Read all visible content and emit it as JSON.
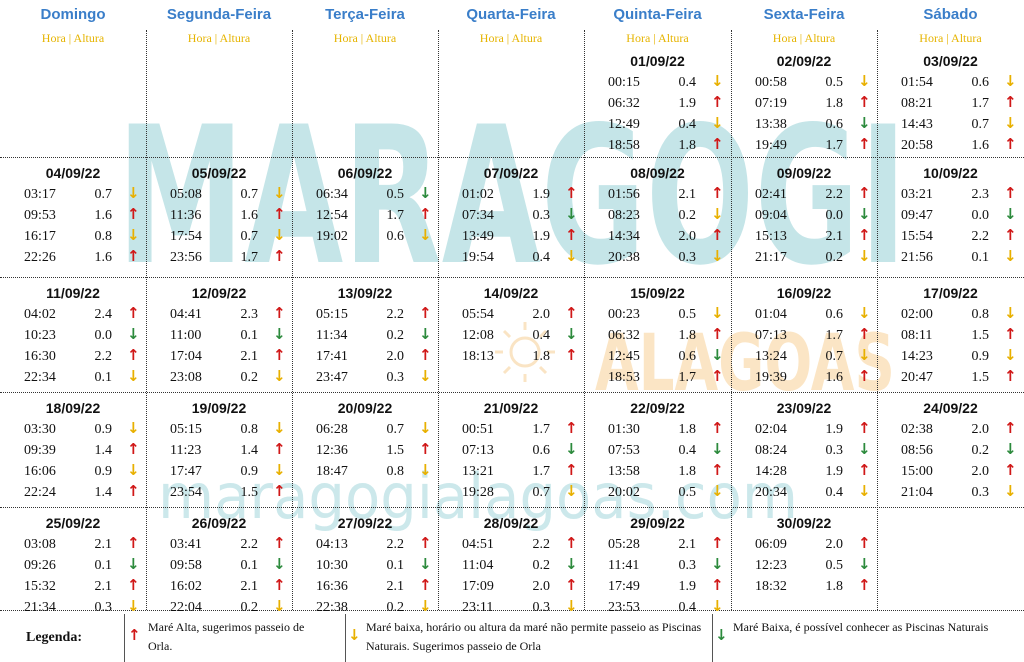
{
  "weekdays": [
    "Domingo",
    "Segunda-Feira",
    "Terça-Feira",
    "Quarta-Feira",
    "Quinta-Feira",
    "Sexta-Feira",
    "Sábado"
  ],
  "subheader": "Hora | Altura",
  "watermark": {
    "brand": "MARAGOGI",
    "region": "ALAGOAS",
    "site": "maragogialagoas.com",
    "colors": {
      "main": "#bfe3e6",
      "region": "#fbe3bf"
    }
  },
  "weeks": [
    [
      null,
      null,
      null,
      null,
      {
        "date": "01/09/22",
        "tides": [
          [
            "00:15",
            "0.4",
            "dy"
          ],
          [
            "06:32",
            "1.9",
            "up"
          ],
          [
            "12:49",
            "0.4",
            "dy"
          ],
          [
            "18:58",
            "1.8",
            "up"
          ]
        ]
      },
      {
        "date": "02/09/22",
        "tides": [
          [
            "00:58",
            "0.5",
            "dy"
          ],
          [
            "07:19",
            "1.8",
            "up"
          ],
          [
            "13:38",
            "0.6",
            "dg"
          ],
          [
            "19:49",
            "1.7",
            "up"
          ]
        ]
      },
      {
        "date": "03/09/22",
        "tides": [
          [
            "01:54",
            "0.6",
            "dy"
          ],
          [
            "08:21",
            "1.7",
            "up"
          ],
          [
            "14:43",
            "0.7",
            "dy"
          ],
          [
            "20:58",
            "1.6",
            "up"
          ]
        ]
      }
    ],
    [
      {
        "date": "04/09/22",
        "tides": [
          [
            "03:17",
            "0.7",
            "dy"
          ],
          [
            "09:53",
            "1.6",
            "up"
          ],
          [
            "16:17",
            "0.8",
            "dy"
          ],
          [
            "22:26",
            "1.6",
            "up"
          ]
        ]
      },
      {
        "date": "05/09/22",
        "tides": [
          [
            "05:08",
            "0.7",
            "dy"
          ],
          [
            "11:36",
            "1.6",
            "up"
          ],
          [
            "17:54",
            "0.7",
            "dy"
          ],
          [
            "23:56",
            "1.7",
            "up"
          ]
        ]
      },
      {
        "date": "06/09/22",
        "tides": [
          [
            "06:34",
            "0.5",
            "dg"
          ],
          [
            "12:54",
            "1.7",
            "up"
          ],
          [
            "19:02",
            "0.6",
            "dy"
          ]
        ]
      },
      {
        "date": "07/09/22",
        "tides": [
          [
            "01:02",
            "1.9",
            "up"
          ],
          [
            "07:34",
            "0.3",
            "dg"
          ],
          [
            "13:49",
            "1.9",
            "up"
          ],
          [
            "19:54",
            "0.4",
            "dy"
          ]
        ]
      },
      {
        "date": "08/09/22",
        "tides": [
          [
            "01:56",
            "2.1",
            "up"
          ],
          [
            "08:23",
            "0.2",
            "dy"
          ],
          [
            "14:34",
            "2.0",
            "up"
          ],
          [
            "20:38",
            "0.3",
            "dy"
          ]
        ]
      },
      {
        "date": "09/09/22",
        "tides": [
          [
            "02:41",
            "2.2",
            "up"
          ],
          [
            "09:04",
            "0.0",
            "dg"
          ],
          [
            "15:13",
            "2.1",
            "up"
          ],
          [
            "21:17",
            "0.2",
            "dy"
          ]
        ]
      },
      {
        "date": "10/09/22",
        "tides": [
          [
            "03:21",
            "2.3",
            "up"
          ],
          [
            "09:47",
            "0.0",
            "dg"
          ],
          [
            "15:54",
            "2.2",
            "up"
          ],
          [
            "21:56",
            "0.1",
            "dy"
          ]
        ]
      }
    ],
    [
      {
        "date": "11/09/22",
        "tides": [
          [
            "04:02",
            "2.4",
            "up"
          ],
          [
            "10:23",
            "0.0",
            "dg"
          ],
          [
            "16:30",
            "2.2",
            "up"
          ],
          [
            "22:34",
            "0.1",
            "dy"
          ]
        ]
      },
      {
        "date": "12/09/22",
        "tides": [
          [
            "04:41",
            "2.3",
            "up"
          ],
          [
            "11:00",
            "0.1",
            "dg"
          ],
          [
            "17:04",
            "2.1",
            "up"
          ],
          [
            "23:08",
            "0.2",
            "dy"
          ]
        ]
      },
      {
        "date": "13/09/22",
        "tides": [
          [
            "05:15",
            "2.2",
            "up"
          ],
          [
            "11:34",
            "0.2",
            "dg"
          ],
          [
            "17:41",
            "2.0",
            "up"
          ],
          [
            "23:47",
            "0.3",
            "dy"
          ]
        ]
      },
      {
        "date": "14/09/22",
        "tides": [
          [
            "05:54",
            "2.0",
            "up"
          ],
          [
            "12:08",
            "0.4",
            "dg"
          ],
          [
            "18:13",
            "1.8",
            "up"
          ]
        ]
      },
      {
        "date": "15/09/22",
        "tides": [
          [
            "00:23",
            "0.5",
            "dy"
          ],
          [
            "06:32",
            "1.8",
            "up"
          ],
          [
            "12:45",
            "0.6",
            "dg"
          ],
          [
            "18:53",
            "1.7",
            "up"
          ]
        ]
      },
      {
        "date": "16/09/22",
        "tides": [
          [
            "01:04",
            "0.6",
            "dy"
          ],
          [
            "07:13",
            "1.7",
            "up"
          ],
          [
            "13:24",
            "0.7",
            "dy"
          ],
          [
            "19:39",
            "1.6",
            "up"
          ]
        ]
      },
      {
        "date": "17/09/22",
        "tides": [
          [
            "02:00",
            "0.8",
            "dy"
          ],
          [
            "08:11",
            "1.5",
            "up"
          ],
          [
            "14:23",
            "0.9",
            "dy"
          ],
          [
            "20:47",
            "1.5",
            "up"
          ]
        ]
      }
    ],
    [
      {
        "date": "18/09/22",
        "tides": [
          [
            "03:30",
            "0.9",
            "dy"
          ],
          [
            "09:39",
            "1.4",
            "up"
          ],
          [
            "16:06",
            "0.9",
            "dy"
          ],
          [
            "22:24",
            "1.4",
            "up"
          ]
        ]
      },
      {
        "date": "19/09/22",
        "tides": [
          [
            "05:15",
            "0.8",
            "dy"
          ],
          [
            "11:23",
            "1.4",
            "up"
          ],
          [
            "17:47",
            "0.9",
            "dy"
          ],
          [
            "23:54",
            "1.5",
            "up"
          ]
        ]
      },
      {
        "date": "20/09/22",
        "tides": [
          [
            "06:28",
            "0.7",
            "dy"
          ],
          [
            "12:36",
            "1.5",
            "up"
          ],
          [
            "18:47",
            "0.8",
            "dy"
          ]
        ]
      },
      {
        "date": "21/09/22",
        "tides": [
          [
            "00:51",
            "1.7",
            "up"
          ],
          [
            "07:13",
            "0.6",
            "dg"
          ],
          [
            "13:21",
            "1.7",
            "up"
          ],
          [
            "19:28",
            "0.7",
            "dy"
          ]
        ]
      },
      {
        "date": "22/09/22",
        "tides": [
          [
            "01:30",
            "1.8",
            "up"
          ],
          [
            "07:53",
            "0.4",
            "dg"
          ],
          [
            "13:58",
            "1.8",
            "up"
          ],
          [
            "20:02",
            "0.5",
            "dy"
          ]
        ]
      },
      {
        "date": "23/09/22",
        "tides": [
          [
            "02:04",
            "1.9",
            "up"
          ],
          [
            "08:24",
            "0.3",
            "dg"
          ],
          [
            "14:28",
            "1.9",
            "up"
          ],
          [
            "20:34",
            "0.4",
            "dy"
          ]
        ]
      },
      {
        "date": "24/09/22",
        "tides": [
          [
            "02:38",
            "2.0",
            "up"
          ],
          [
            "08:56",
            "0.2",
            "dg"
          ],
          [
            "15:00",
            "2.0",
            "up"
          ],
          [
            "21:04",
            "0.3",
            "dy"
          ]
        ]
      }
    ],
    [
      {
        "date": "25/09/22",
        "tides": [
          [
            "03:08",
            "2.1",
            "up"
          ],
          [
            "09:26",
            "0.1",
            "dg"
          ],
          [
            "15:32",
            "2.1",
            "up"
          ],
          [
            "21:34",
            "0.3",
            "dy"
          ]
        ]
      },
      {
        "date": "26/09/22",
        "tides": [
          [
            "03:41",
            "2.2",
            "up"
          ],
          [
            "09:58",
            "0.1",
            "dg"
          ],
          [
            "16:02",
            "2.1",
            "up"
          ],
          [
            "22:04",
            "0.2",
            "dy"
          ]
        ]
      },
      {
        "date": "27/09/22",
        "tides": [
          [
            "04:13",
            "2.2",
            "up"
          ],
          [
            "10:30",
            "0.1",
            "dg"
          ],
          [
            "16:36",
            "2.1",
            "up"
          ],
          [
            "22:38",
            "0.2",
            "dy"
          ]
        ]
      },
      {
        "date": "28/09/22",
        "tides": [
          [
            "04:51",
            "2.2",
            "up"
          ],
          [
            "11:04",
            "0.2",
            "dg"
          ],
          [
            "17:09",
            "2.0",
            "up"
          ],
          [
            "23:11",
            "0.3",
            "dy"
          ]
        ]
      },
      {
        "date": "29/09/22",
        "tides": [
          [
            "05:28",
            "2.1",
            "up"
          ],
          [
            "11:41",
            "0.3",
            "dg"
          ],
          [
            "17:49",
            "1.9",
            "up"
          ],
          [
            "23:53",
            "0.4",
            "dy"
          ]
        ]
      },
      {
        "date": "30/09/22",
        "tides": [
          [
            "06:09",
            "2.0",
            "up"
          ],
          [
            "12:23",
            "0.5",
            "dg"
          ],
          [
            "18:32",
            "1.8",
            "up"
          ]
        ]
      },
      null
    ]
  ],
  "legend": {
    "title": "Legenda:",
    "items": [
      {
        "kind": "up",
        "text": "Maré Alta, sugerimos passeio de Orla."
      },
      {
        "kind": "dy",
        "text": "Maré baixa, horário ou altura da maré não permite passeio as Piscinas Naturais. Sugerimos passeio de Orla"
      },
      {
        "kind": "dg",
        "text": "Maré Baixa, é possível conhecer as Piscinas Naturais"
      }
    ]
  },
  "colors": {
    "up": "#d01818",
    "dy": "#e8b000",
    "dg": "#2c8a3c",
    "header": "#3a7ec9",
    "subheader": "#e6b400"
  }
}
